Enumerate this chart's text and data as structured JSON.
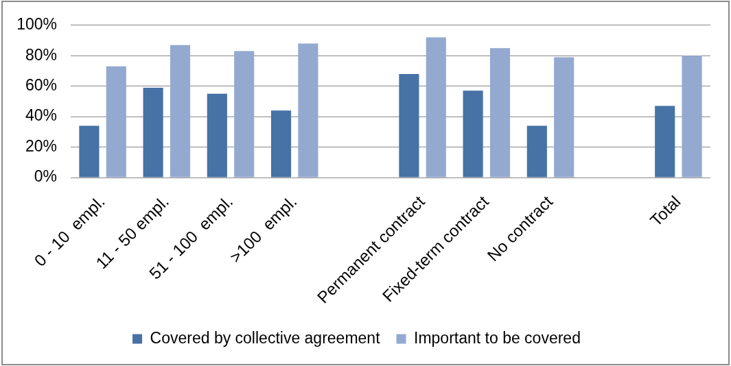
{
  "chart_data": {
    "type": "bar",
    "categories": [
      "0 - 10  empl.",
      "11 - 50 empl.",
      "51 - 100  empl.",
      ">100  empl.",
      null,
      "Permanent contract",
      "Fixed-term contract",
      "No contract",
      null,
      "Total"
    ],
    "series": [
      {
        "name": "Covered by collective agreement",
        "color": "#4672a6",
        "values": [
          34,
          59,
          55,
          44,
          null,
          68,
          57,
          34,
          null,
          47
        ]
      },
      {
        "name": "Important to be covered",
        "color": "#93a9d0",
        "values": [
          73,
          87,
          83,
          88,
          null,
          92,
          85,
          79,
          null,
          80
        ]
      }
    ],
    "ylim": [
      0,
      100
    ],
    "yticks": [
      {
        "value": 0,
        "label": "0%"
      },
      {
        "value": 20,
        "label": "20%"
      },
      {
        "value": 40,
        "label": "40%"
      },
      {
        "value": 60,
        "label": "60%"
      },
      {
        "value": 80,
        "label": "80%"
      },
      {
        "value": 100,
        "label": "100%"
      }
    ],
    "grid": "y",
    "legend": "bottom"
  }
}
